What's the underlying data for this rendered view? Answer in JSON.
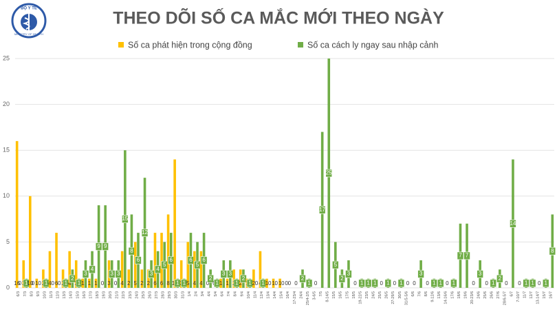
{
  "logo": {
    "top": "BỘ Y TẾ",
    "bottom": "MINISTRY OF HEALTH"
  },
  "chart_data": {
    "type": "bar",
    "title": "THEO DÕI SỐ CA MẮC MỚI THEO NGÀY",
    "categories": [
      "6/3",
      "7/3",
      "8/3",
      "9/3",
      "10/3",
      "11/3",
      "12/3",
      "13/3",
      "14/3",
      "15/3",
      "16/3",
      "17/3",
      "18/3",
      "19/3",
      "20/3",
      "21/3",
      "22/3",
      "23/3",
      "24/3",
      "25/3",
      "26/3",
      "27/3",
      "28/3",
      "29/3",
      "30/3",
      "31/3",
      "1/4",
      "2/4",
      "3/4",
      "4/4",
      "5/4",
      "6/4",
      "7/4",
      "8/4",
      "9/4",
      "10/4",
      "11/4",
      "12/4",
      "13/4",
      "14/4",
      "15/4",
      "16/4",
      "17-23/4",
      "24/4",
      "25/4-2/5",
      "3-6/5",
      "7/5",
      "8-14/5",
      "15/5",
      "16/5",
      "17/5",
      "18/5",
      "19-22/5",
      "23/5",
      "24/5",
      "25/5",
      "26/5",
      "27-29/5",
      "30/5",
      "31/5-5/6",
      "6/6",
      "7/6",
      "8/6",
      "9-12/6",
      "13/6",
      "14-16/6",
      "17/6",
      "18/6",
      "19/6",
      "20-23/6",
      "24/6",
      "25/6",
      "26/6",
      "27/6",
      "28/6-5/7",
      "6/7",
      "7-10/7",
      "11/7",
      "12/7",
      "13-14/7",
      "15/7",
      "16/7"
    ],
    "series": [
      {
        "name": "Số ca phát hiện trong cộng đồng",
        "color": "#ffc000",
        "values": [
          16,
          3,
          10,
          1,
          2,
          4,
          6,
          2,
          4,
          3,
          1,
          1,
          1,
          0,
          3,
          0,
          4,
          2,
          5,
          2,
          2,
          6,
          6,
          8,
          14,
          3,
          5,
          4,
          4,
          0,
          0,
          1,
          1,
          2,
          2,
          1,
          2,
          4,
          1,
          1,
          1,
          0,
          null,
          null,
          null,
          null,
          null,
          null,
          null,
          null,
          null,
          null,
          null,
          null,
          null,
          null,
          null,
          null,
          null,
          null,
          null,
          null,
          null,
          null,
          null,
          null,
          null,
          null,
          null,
          null,
          null,
          null,
          null,
          null,
          null,
          null,
          null,
          null,
          null,
          null,
          null,
          null
        ]
      },
      {
        "name": "Số ca cách ly ngay sau nhập cảnh",
        "color": "#70ad47",
        "values": [
          0,
          1,
          0,
          0,
          1,
          0,
          0,
          1,
          2,
          1,
          3,
          4,
          9,
          9,
          3,
          3,
          15,
          8,
          6,
          12,
          3,
          4,
          5,
          6,
          1,
          1,
          6,
          5,
          6,
          2,
          1,
          3,
          3,
          1,
          2,
          1,
          0,
          1,
          0,
          0,
          0,
          0,
          0,
          2,
          1,
          0,
          17,
          25,
          5,
          2,
          3,
          0,
          1,
          1,
          1,
          0,
          1,
          0,
          1,
          0,
          0,
          3,
          0,
          1,
          1,
          0,
          1,
          7,
          7,
          0,
          3,
          0,
          1,
          2,
          0,
          14,
          0,
          1,
          1,
          0,
          1,
          8
        ]
      }
    ],
    "ylim": [
      0,
      25
    ],
    "yticks": [
      0,
      5,
      10,
      15,
      20,
      25
    ],
    "grid": true,
    "legend": "top"
  }
}
